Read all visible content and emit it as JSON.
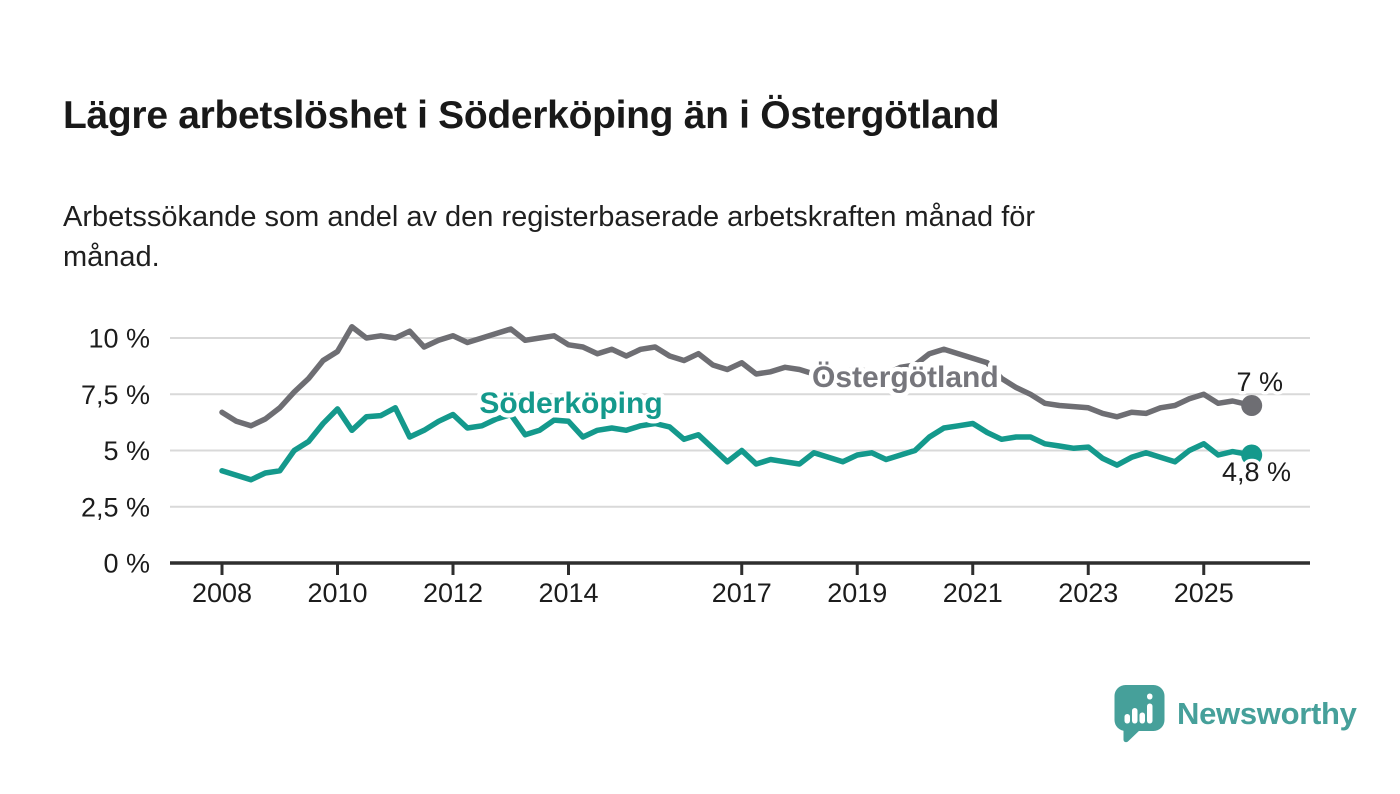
{
  "header": {
    "title": "Lägre arbetslöshet i Söderköping än i Östergötland",
    "subtitle": "Arbetssökande som andel av den registerbaserade arbetskraften månad för månad.",
    "subtitle_lines": [
      "Arbetssökande som andel av den registerbaserade arbetskraften månad för",
      "månad."
    ]
  },
  "footer": {
    "brand": "Newsworthy"
  },
  "colors": {
    "soderkoping": "#14998c",
    "ostergotland": "#6e6e73",
    "ostergotland_label": "#76767c",
    "grid": "#d9d9d9",
    "axis": "#2e2e2e",
    "text": "#1c1c1c",
    "logo": "#46a09a"
  },
  "chart_data": {
    "type": "line",
    "title": "Lägre arbetslöshet i Söderköping än i Östergötland",
    "subtitle": "Arbetssökande som andel av den registerbaserade arbetskraften månad för månad.",
    "xlabel": "",
    "ylabel": "",
    "grid": "horizontal",
    "legend": "inline-series-labels",
    "x_unit": "decimal year (monthly series, approx. quarterly sampled)",
    "y_unit": "percent of registered labour force",
    "x_axis": {
      "range": [
        2007.1,
        2026.8
      ],
      "tick_values": [
        2008,
        2010,
        2012,
        2014,
        2017,
        2019,
        2021,
        2023,
        2025
      ],
      "tick_labels": [
        "2008",
        "2010",
        "2012",
        "2014",
        "2017",
        "2019",
        "2021",
        "2023",
        "2025"
      ]
    },
    "y_axis": {
      "range": [
        0,
        11.2
      ],
      "tick_values": [
        0,
        2.5,
        5,
        7.5,
        10
      ],
      "tick_labels": [
        "0 %",
        "2,5 %",
        "5 %",
        "7,5 %",
        "10 %"
      ]
    },
    "x": [
      2008.0,
      2008.25,
      2008.5,
      2008.75,
      2009.0,
      2009.25,
      2009.5,
      2009.75,
      2010.0,
      2010.25,
      2010.5,
      2010.75,
      2011.0,
      2011.25,
      2011.5,
      2011.75,
      2012.0,
      2012.25,
      2012.5,
      2012.75,
      2013.0,
      2013.25,
      2013.5,
      2013.75,
      2014.0,
      2014.25,
      2014.5,
      2014.75,
      2015.0,
      2015.25,
      2015.5,
      2015.75,
      2016.0,
      2016.25,
      2016.5,
      2016.75,
      2017.0,
      2017.25,
      2017.5,
      2017.75,
      2018.0,
      2018.25,
      2018.5,
      2018.75,
      2019.0,
      2019.25,
      2019.5,
      2019.75,
      2020.0,
      2020.25,
      2020.5,
      2020.75,
      2021.0,
      2021.25,
      2021.5,
      2021.75,
      2022.0,
      2022.25,
      2022.5,
      2022.75,
      2023.0,
      2023.25,
      2023.5,
      2023.75,
      2024.0,
      2024.25,
      2024.5,
      2024.75,
      2025.0,
      2025.25,
      2025.5,
      2025.83
    ],
    "series": [
      {
        "id": "ostergotland",
        "name": "Östergötland",
        "color": "#6e6e73",
        "end_label": "7 %",
        "end_value": 7.0,
        "values": [
          6.7,
          6.3,
          6.1,
          6.4,
          6.9,
          7.6,
          8.2,
          9.0,
          9.4,
          10.5,
          10.0,
          10.1,
          10.0,
          10.3,
          9.6,
          9.9,
          10.1,
          9.8,
          10.0,
          10.2,
          10.4,
          9.9,
          10.0,
          10.1,
          9.7,
          9.6,
          9.3,
          9.5,
          9.2,
          9.5,
          9.6,
          9.2,
          9.0,
          9.3,
          8.8,
          8.6,
          8.9,
          8.4,
          8.5,
          8.7,
          8.6,
          8.4,
          8.2,
          8.5,
          8.6,
          8.5,
          8.4,
          8.7,
          8.8,
          9.3,
          9.5,
          9.3,
          9.1,
          8.9,
          8.2,
          7.8,
          7.5,
          7.1,
          7.0,
          6.95,
          6.9,
          6.65,
          6.5,
          6.7,
          6.65,
          6.9,
          7.0,
          7.3,
          7.5,
          7.1,
          7.2,
          7.0
        ]
      },
      {
        "id": "soderkoping",
        "name": "Söderköping",
        "color": "#14998c",
        "end_label": "4,8 %",
        "end_value": 4.8,
        "values": [
          4.1,
          3.9,
          3.7,
          4.0,
          4.1,
          5.0,
          5.4,
          6.2,
          6.85,
          5.9,
          6.5,
          6.55,
          6.9,
          5.6,
          5.9,
          6.3,
          6.6,
          6.0,
          6.1,
          6.4,
          6.6,
          5.7,
          5.9,
          6.35,
          6.3,
          5.6,
          5.9,
          6.0,
          5.9,
          6.1,
          6.2,
          6.05,
          5.5,
          5.7,
          5.1,
          4.5,
          5.0,
          4.4,
          4.6,
          4.5,
          4.4,
          4.9,
          4.7,
          4.5,
          4.8,
          4.9,
          4.6,
          4.8,
          5.0,
          5.6,
          6.0,
          6.1,
          6.2,
          5.8,
          5.5,
          5.6,
          5.6,
          5.3,
          5.2,
          5.1,
          5.15,
          4.65,
          4.35,
          4.7,
          4.9,
          4.7,
          4.5,
          5.0,
          5.3,
          4.8,
          4.95,
          4.8
        ]
      }
    ]
  }
}
